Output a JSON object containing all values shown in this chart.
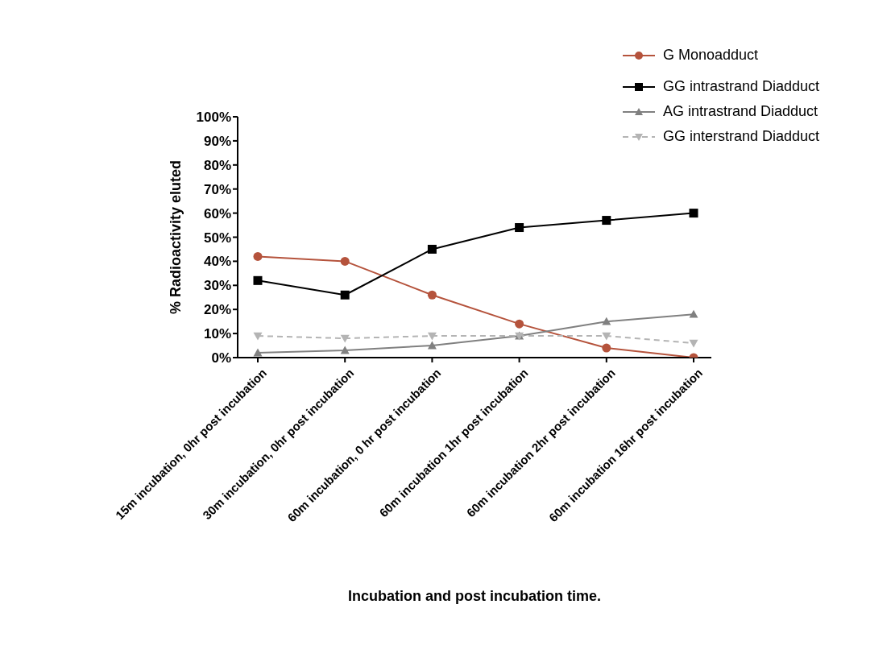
{
  "chart_data": {
    "type": "line",
    "xlabel": "Incubation and post incubation time.",
    "ylabel": "% Radioactivity eluted",
    "categories": [
      "15m incubation, 0hr post incubation",
      "30m incubation, 0hr post incubation",
      "60m incubation, 0 hr post incubation",
      "60m incubation 1hr post incubation",
      "60m incubation 2hr post incubation",
      "60m incubation 16hr post incubation"
    ],
    "series": [
      {
        "name": "G Monoadduct",
        "color": "#b5533c",
        "marker": "circle",
        "line_style": "solid",
        "values": [
          42,
          40,
          26,
          14,
          4,
          0
        ]
      },
      {
        "name": "GG intrastrand Diadduct",
        "color": "#000000",
        "marker": "square",
        "line_style": "solid",
        "values": [
          32,
          26,
          45,
          54,
          57,
          60
        ]
      },
      {
        "name": "AG intrastrand Diadduct",
        "color": "#808080",
        "marker": "triangle",
        "line_style": "solid",
        "values": [
          2,
          3,
          5,
          9,
          15,
          18
        ]
      },
      {
        "name": "GG interstrand Diadduct",
        "color": "#b4b4b4",
        "marker": "triangle-down",
        "line_style": "dashed",
        "values": [
          9,
          8,
          9,
          9,
          9,
          6
        ]
      }
    ],
    "ylim": [
      0,
      100
    ],
    "yticks": [
      {
        "value": 0,
        "label": "0%"
      },
      {
        "value": 10,
        "label": "10%"
      },
      {
        "value": 20,
        "label": "20%"
      },
      {
        "value": 30,
        "label": "30%"
      },
      {
        "value": 40,
        "label": "40%"
      },
      {
        "value": 50,
        "label": "50%"
      },
      {
        "value": 60,
        "label": "60%"
      },
      {
        "value": 70,
        "label": "70%"
      },
      {
        "value": 80,
        "label": "80%"
      },
      {
        "value": 90,
        "label": "90%"
      },
      {
        "value": 100,
        "label": "100%"
      }
    ],
    "grid": false,
    "legend": "top right"
  }
}
